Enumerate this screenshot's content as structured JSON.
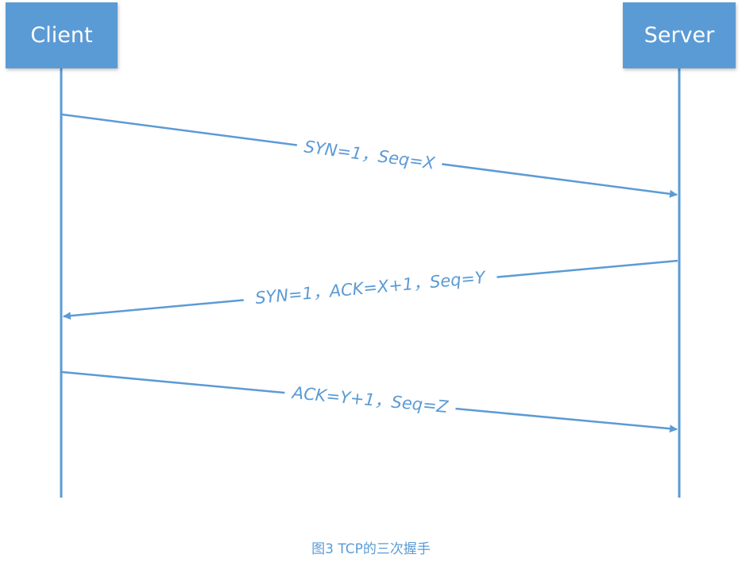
{
  "participants": {
    "client": "Client",
    "server": "Server"
  },
  "messages": [
    {
      "label": "SYN=1，Seq=X",
      "direction": "client-to-server"
    },
    {
      "label": "SYN=1，ACK=X+1，Seq=Y",
      "direction": "server-to-client"
    },
    {
      "label": "ACK=Y+1，Seq=Z",
      "direction": "client-to-server"
    }
  ],
  "caption": "图3 TCP的三次握手",
  "colors": {
    "accent": "#5b9bd5",
    "box_text": "#ffffff",
    "background": "#ffffff"
  }
}
